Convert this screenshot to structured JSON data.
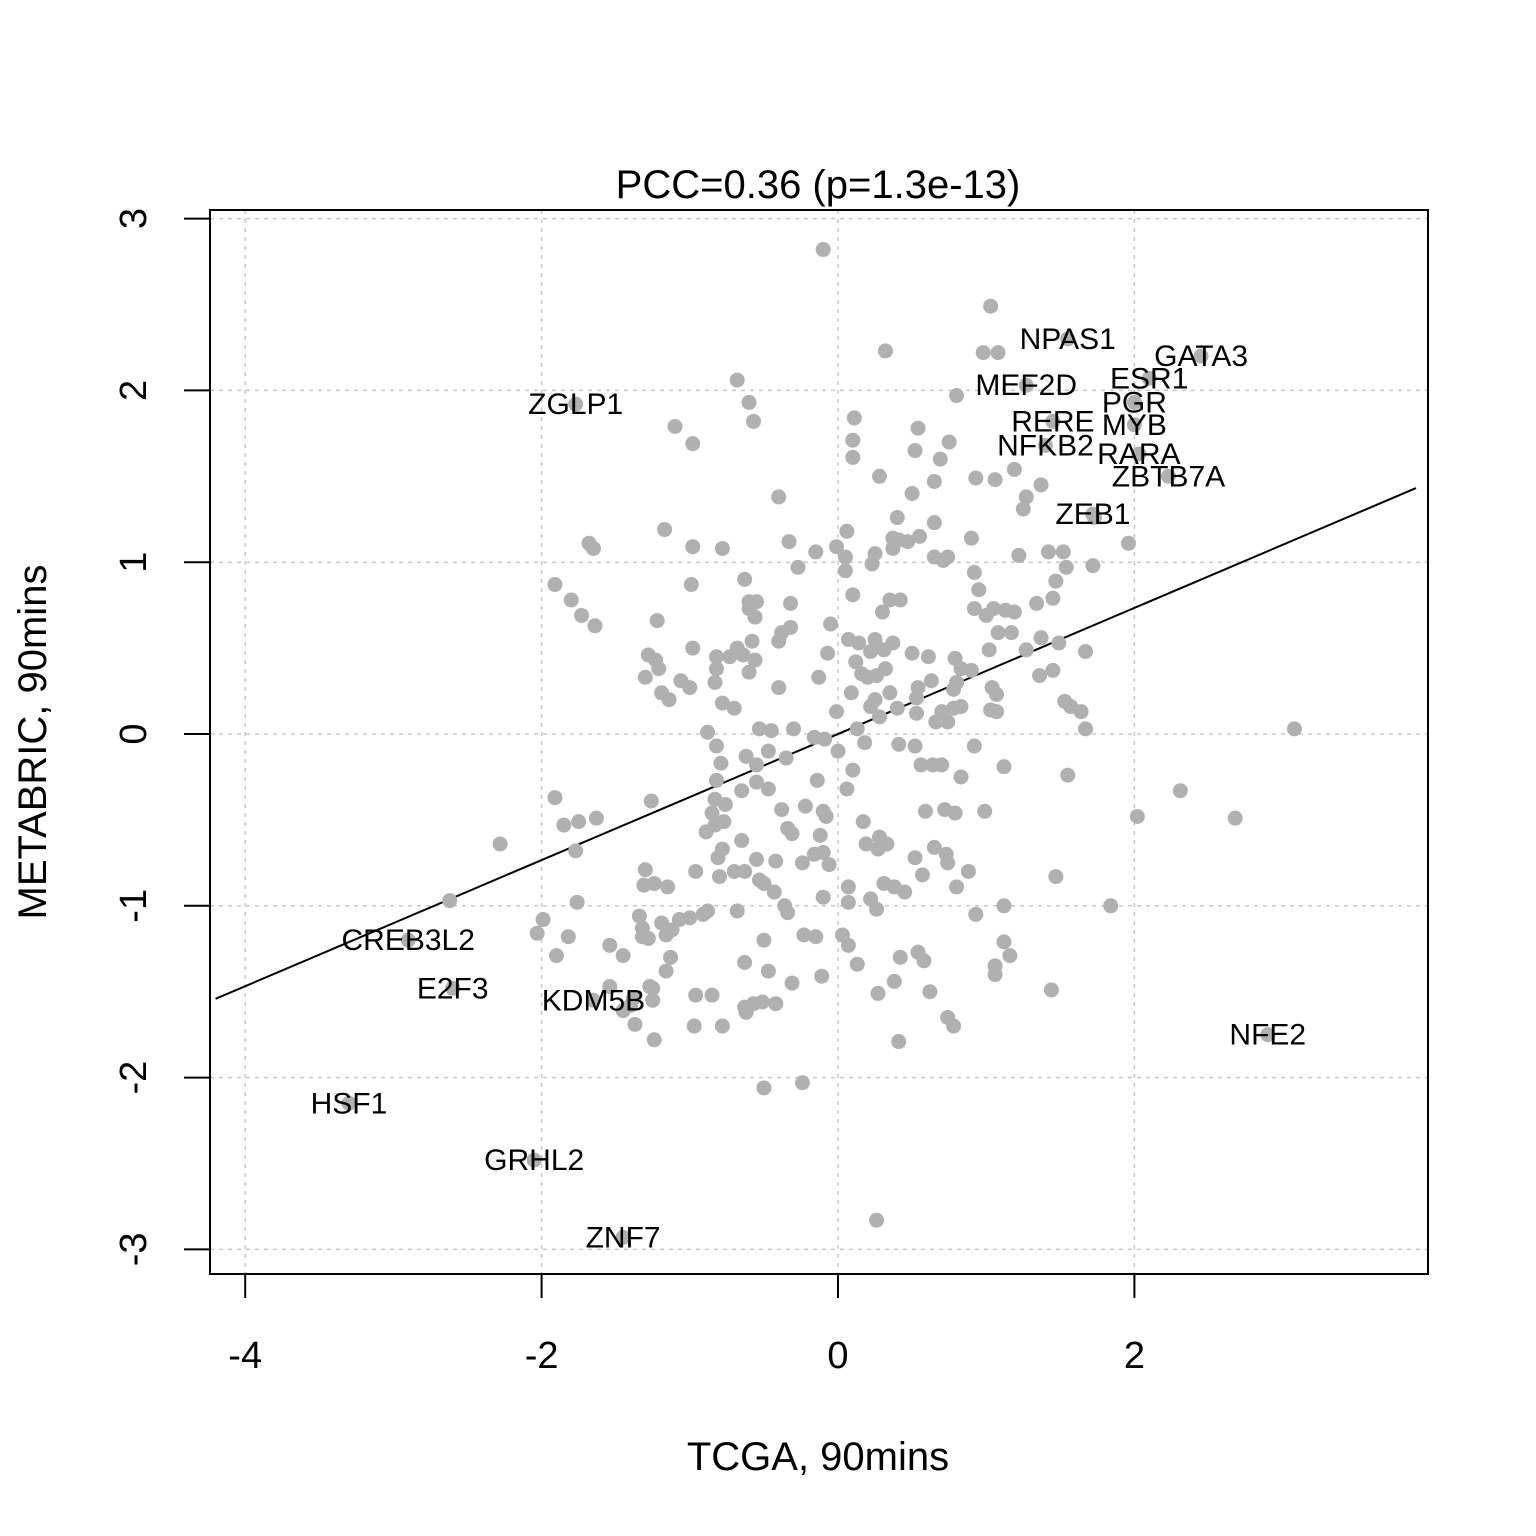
{
  "chart_data": {
    "type": "scatter",
    "title": "PCC=0.36 (p=1.3e-13)",
    "xlabel": "TCGA, 90mins",
    "ylabel": "METABRIC, 90mins",
    "xlim": [
      -4.2,
      3.9
    ],
    "ylim": [
      -3.15,
      3.05
    ],
    "xticks": [
      -4,
      -2,
      0,
      2
    ],
    "yticks": [
      -3,
      -2,
      -1,
      0,
      1,
      2,
      3
    ],
    "grid": true,
    "point_color": "#b0b0b0",
    "fit_line": {
      "slope": 0.367,
      "intercept": -0.0
    },
    "labeled_points": [
      {
        "label": "NPAS1",
        "x": 1.55,
        "y": 2.3
      },
      {
        "label": "GATA3",
        "x": 2.45,
        "y": 2.2
      },
      {
        "label": "ESR1",
        "x": 2.1,
        "y": 2.07
      },
      {
        "label": "MEF2D",
        "x": 1.27,
        "y": 2.03
      },
      {
        "label": "PGR",
        "x": 2.0,
        "y": 1.93
      },
      {
        "label": "ZGLP1",
        "x": -1.77,
        "y": 1.92
      },
      {
        "label": "RERE",
        "x": 1.45,
        "y": 1.82
      },
      {
        "label": "MYB",
        "x": 2.0,
        "y": 1.8
      },
      {
        "label": "NFKB2",
        "x": 1.4,
        "y": 1.68
      },
      {
        "label": "RARA",
        "x": 2.03,
        "y": 1.63
      },
      {
        "label": "ZBTB7A",
        "x": 2.23,
        "y": 1.5
      },
      {
        "label": "ZEB1",
        "x": 1.72,
        "y": 1.28
      },
      {
        "label": "CREB3L2",
        "x": -2.9,
        "y": -1.2
      },
      {
        "label": "E2F3",
        "x": -2.6,
        "y": -1.48
      },
      {
        "label": "KDM5B",
        "x": -1.65,
        "y": -1.55
      },
      {
        "label": "NFE2",
        "x": 2.9,
        "y": -1.75
      },
      {
        "label": "HSF1",
        "x": -3.3,
        "y": -2.15
      },
      {
        "label": "GRHL2",
        "x": -2.05,
        "y": -2.48
      },
      {
        "label": "ZNF7",
        "x": -1.45,
        "y": -2.93
      }
    ],
    "points": [
      [
        -0.1,
        2.82
      ],
      [
        1.03,
        2.49
      ],
      [
        0.32,
        2.23
      ],
      [
        0.98,
        2.22
      ],
      [
        1.08,
        2.22
      ],
      [
        -0.68,
        2.06
      ],
      [
        -0.6,
        1.93
      ],
      [
        0.8,
        1.97
      ],
      [
        -0.57,
        1.82
      ],
      [
        -1.1,
        1.79
      ],
      [
        0.11,
        1.84
      ],
      [
        0.54,
        1.78
      ],
      [
        0.75,
        1.7
      ],
      [
        -0.98,
        1.69
      ],
      [
        0.1,
        1.71
      ],
      [
        0.52,
        1.65
      ],
      [
        0.69,
        1.6
      ],
      [
        0.1,
        1.61
      ],
      [
        1.19,
        1.54
      ],
      [
        0.28,
        1.5
      ],
      [
        0.93,
        1.49
      ],
      [
        1.06,
        1.48
      ],
      [
        0.65,
        1.47
      ],
      [
        1.37,
        1.45
      ],
      [
        0.5,
        1.4
      ],
      [
        -0.4,
        1.38
      ],
      [
        1.27,
        1.38
      ],
      [
        0.4,
        1.26
      ],
      [
        1.25,
        1.31
      ],
      [
        1.73,
        1.26
      ],
      [
        0.65,
        1.23
      ],
      [
        -1.17,
        1.19
      ],
      [
        0.06,
        1.18
      ],
      [
        0.55,
        1.15
      ],
      [
        0.41,
        1.13
      ],
      [
        0.37,
        1.14
      ],
      [
        0.47,
        1.12
      ],
      [
        0.9,
        1.14
      ],
      [
        -0.33,
        1.12
      ],
      [
        1.96,
        1.11
      ],
      [
        -1.68,
        1.11
      ],
      [
        -1.65,
        1.08
      ],
      [
        -0.98,
        1.09
      ],
      [
        -0.78,
        1.08
      ],
      [
        -0.01,
        1.09
      ],
      [
        0.37,
        1.08
      ],
      [
        -0.15,
        1.06
      ],
      [
        1.42,
        1.06
      ],
      [
        1.52,
        1.06
      ],
      [
        0.25,
        1.05
      ],
      [
        1.22,
        1.04
      ],
      [
        0.05,
        1.03
      ],
      [
        0.65,
        1.03
      ],
      [
        0.74,
        1.03
      ],
      [
        0.71,
        1.01
      ],
      [
        0.23,
        0.99
      ],
      [
        1.72,
        0.98
      ],
      [
        -0.27,
        0.97
      ],
      [
        1.54,
        0.97
      ],
      [
        0.05,
        0.95
      ],
      [
        0.92,
        0.94
      ],
      [
        -0.63,
        0.9
      ],
      [
        1.47,
        0.89
      ],
      [
        -1.91,
        0.87
      ],
      [
        -0.99,
        0.87
      ],
      [
        0.95,
        0.84
      ],
      [
        0.1,
        0.81
      ],
      [
        -1.8,
        0.78
      ],
      [
        0.35,
        0.78
      ],
      [
        0.42,
        0.78
      ],
      [
        -0.6,
        0.77
      ],
      [
        -0.55,
        0.77
      ],
      [
        1.45,
        0.79
      ],
      [
        -0.32,
        0.76
      ],
      [
        0.92,
        0.73
      ],
      [
        1.05,
        0.73
      ],
      [
        -0.6,
        0.73
      ],
      [
        1.13,
        0.72
      ],
      [
        1.34,
        0.76
      ],
      [
        0.3,
        0.71
      ],
      [
        1.19,
        0.71
      ],
      [
        1.0,
        0.69
      ],
      [
        -1.73,
        0.69
      ],
      [
        -0.56,
        0.68
      ],
      [
        -1.22,
        0.66
      ],
      [
        -1.64,
        0.63
      ],
      [
        -0.05,
        0.64
      ],
      [
        -0.32,
        0.62
      ],
      [
        -0.38,
        0.59
      ],
      [
        1.08,
        0.59
      ],
      [
        1.17,
        0.59
      ],
      [
        1.37,
        0.56
      ],
      [
        0.07,
        0.55
      ],
      [
        -0.4,
        0.54
      ],
      [
        -0.58,
        0.54
      ],
      [
        0.25,
        0.55
      ],
      [
        0.14,
        0.53
      ],
      [
        1.49,
        0.53
      ],
      [
        -0.98,
        0.5
      ],
      [
        0.31,
        0.49
      ],
      [
        0.37,
        0.53
      ],
      [
        1.02,
        0.49
      ],
      [
        1.27,
        0.49
      ],
      [
        0.22,
        0.48
      ],
      [
        0.5,
        0.47
      ],
      [
        -0.82,
        0.45
      ],
      [
        -0.73,
        0.45
      ],
      [
        -1.28,
        0.46
      ],
      [
        -0.64,
        0.46
      ],
      [
        -0.68,
        0.5
      ],
      [
        0.79,
        0.44
      ],
      [
        0.61,
        0.45
      ],
      [
        -0.07,
        0.47
      ],
      [
        1.67,
        0.48
      ],
      [
        -1.23,
        0.43
      ],
      [
        -0.56,
        0.43
      ],
      [
        0.12,
        0.42
      ],
      [
        1.45,
        0.37
      ],
      [
        -1.21,
        0.38
      ],
      [
        -0.82,
        0.38
      ],
      [
        0.32,
        0.38
      ],
      [
        0.83,
        0.38
      ],
      [
        0.9,
        0.37
      ],
      [
        -1.3,
        0.33
      ],
      [
        -0.13,
        0.33
      ],
      [
        0.16,
        0.35
      ],
      [
        0.2,
        0.33
      ],
      [
        0.26,
        0.34
      ],
      [
        -0.6,
        0.36
      ],
      [
        -1.06,
        0.31
      ],
      [
        1.36,
        0.34
      ],
      [
        -0.83,
        0.3
      ],
      [
        0.63,
        0.31
      ],
      [
        0.8,
        0.3
      ],
      [
        1.04,
        0.27
      ],
      [
        -1.0,
        0.27
      ],
      [
        -0.4,
        0.27
      ],
      [
        0.54,
        0.27
      ],
      [
        0.78,
        0.26
      ],
      [
        1.07,
        0.23
      ],
      [
        -1.19,
        0.24
      ],
      [
        0.09,
        0.24
      ],
      [
        0.35,
        0.24
      ],
      [
        0.53,
        0.21
      ],
      [
        -1.14,
        0.2
      ],
      [
        1.53,
        0.19
      ],
      [
        0.25,
        0.2
      ],
      [
        -0.78,
        0.18
      ],
      [
        0.83,
        0.16
      ],
      [
        1.57,
        0.16
      ],
      [
        0.22,
        0.16
      ],
      [
        0.4,
        0.15
      ],
      [
        -0.7,
        0.15
      ],
      [
        0.78,
        0.15
      ],
      [
        1.03,
        0.14
      ],
      [
        1.64,
        0.13
      ],
      [
        0.53,
        0.12
      ],
      [
        0.7,
        0.13
      ],
      [
        -0.01,
        0.13
      ],
      [
        0.28,
        0.1
      ],
      [
        1.07,
        0.13
      ],
      [
        0.66,
        0.07
      ],
      [
        -0.53,
        0.03
      ],
      [
        0.74,
        0.07
      ],
      [
        -0.45,
        0.02
      ],
      [
        -0.88,
        0.01
      ],
      [
        -0.3,
        0.03
      ],
      [
        0.13,
        0.03
      ],
      [
        1.67,
        0.03
      ],
      [
        3.08,
        0.03
      ],
      [
        -0.16,
        -0.02
      ],
      [
        -0.09,
        -0.03
      ],
      [
        0.18,
        -0.05
      ],
      [
        0.41,
        -0.06
      ],
      [
        -0.82,
        -0.07
      ],
      [
        -0.47,
        -0.1
      ],
      [
        0.0,
        -0.1
      ],
      [
        0.52,
        -0.07
      ],
      [
        0.92,
        -0.07
      ],
      [
        -0.62,
        -0.13
      ],
      [
        -0.35,
        -0.14
      ],
      [
        0.56,
        -0.18
      ],
      [
        0.64,
        -0.18
      ],
      [
        -0.79,
        -0.17
      ],
      [
        -0.55,
        -0.18
      ],
      [
        0.7,
        -0.18
      ],
      [
        0.1,
        -0.21
      ],
      [
        1.12,
        -0.19
      ],
      [
        -0.82,
        -0.27
      ],
      [
        0.83,
        -0.25
      ],
      [
        1.55,
        -0.24
      ],
      [
        -0.55,
        -0.28
      ],
      [
        -0.14,
        -0.27
      ],
      [
        -0.47,
        -0.32
      ],
      [
        -0.65,
        -0.33
      ],
      [
        0.06,
        -0.32
      ],
      [
        2.31,
        -0.33
      ],
      [
        -1.91,
        -0.37
      ],
      [
        -0.83,
        -0.38
      ],
      [
        -1.26,
        -0.39
      ],
      [
        -0.76,
        -0.41
      ],
      [
        -0.22,
        -0.42
      ],
      [
        -0.38,
        -0.44
      ],
      [
        0.59,
        -0.45
      ],
      [
        0.72,
        -0.44
      ],
      [
        0.79,
        -0.46
      ],
      [
        0.99,
        -0.45
      ],
      [
        -0.85,
        -0.46
      ],
      [
        -0.1,
        -0.45
      ],
      [
        -0.08,
        -0.48
      ],
      [
        2.02,
        -0.48
      ],
      [
        2.68,
        -0.49
      ],
      [
        -1.63,
        -0.49
      ],
      [
        -1.75,
        -0.51
      ],
      [
        -0.77,
        -0.51
      ],
      [
        0.17,
        -0.51
      ],
      [
        -0.83,
        -0.53
      ],
      [
        -1.85,
        -0.53
      ],
      [
        -0.34,
        -0.55
      ],
      [
        -0.89,
        -0.57
      ],
      [
        -0.31,
        -0.58
      ],
      [
        -0.12,
        -0.59
      ],
      [
        0.28,
        -0.6
      ],
      [
        -0.65,
        -0.62
      ],
      [
        0.33,
        -0.64
      ],
      [
        0.19,
        -0.64
      ],
      [
        -2.28,
        -0.64
      ],
      [
        0.27,
        -0.67
      ],
      [
        0.65,
        -0.66
      ],
      [
        -0.78,
        -0.67
      ],
      [
        -1.77,
        -0.68
      ],
      [
        -0.1,
        -0.69
      ],
      [
        0.73,
        -0.7
      ],
      [
        -0.16,
        -0.7
      ],
      [
        0.52,
        -0.72
      ],
      [
        -0.81,
        -0.72
      ],
      [
        -0.55,
        -0.73
      ],
      [
        -0.42,
        -0.74
      ],
      [
        -0.24,
        -0.75
      ],
      [
        0.74,
        -0.75
      ],
      [
        -0.06,
        -0.76
      ],
      [
        0.88,
        -0.8
      ],
      [
        -0.7,
        -0.8
      ],
      [
        -0.63,
        -0.8
      ],
      [
        -1.3,
        -0.79
      ],
      [
        -0.96,
        -0.8
      ],
      [
        0.57,
        -0.82
      ],
      [
        -0.8,
        -0.83
      ],
      [
        -0.53,
        -0.85
      ],
      [
        1.47,
        -0.83
      ],
      [
        -1.24,
        -0.87
      ],
      [
        -0.5,
        -0.87
      ],
      [
        0.31,
        -0.87
      ],
      [
        -1.31,
        -0.88
      ],
      [
        0.07,
        -0.89
      ],
      [
        0.38,
        -0.89
      ],
      [
        0.8,
        -0.89
      ],
      [
        -1.15,
        -0.89
      ],
      [
        -0.43,
        -0.92
      ],
      [
        0.45,
        -0.92
      ],
      [
        -0.1,
        -0.95
      ],
      [
        0.22,
        -0.96
      ],
      [
        0.07,
        -0.98
      ],
      [
        1.12,
        -1.0
      ],
      [
        1.84,
        -1.0
      ],
      [
        -2.62,
        -0.97
      ],
      [
        -1.76,
        -0.98
      ],
      [
        -0.36,
        -1.0
      ],
      [
        -0.68,
        -1.03
      ],
      [
        0.93,
        -1.05
      ],
      [
        -0.34,
        -1.04
      ],
      [
        0.26,
        -1.02
      ],
      [
        -0.88,
        -1.03
      ],
      [
        -0.91,
        -1.05
      ],
      [
        -1.0,
        -1.07
      ],
      [
        -1.07,
        -1.08
      ],
      [
        -1.99,
        -1.08
      ],
      [
        -1.34,
        -1.06
      ],
      [
        -1.19,
        -1.1
      ],
      [
        -1.12,
        -1.14
      ],
      [
        -1.32,
        -1.13
      ],
      [
        -1.16,
        -1.17
      ],
      [
        -2.03,
        -1.16
      ],
      [
        -1.82,
        -1.18
      ],
      [
        -1.32,
        -1.18
      ],
      [
        -1.28,
        -1.19
      ],
      [
        0.03,
        -1.17
      ],
      [
        -0.23,
        -1.17
      ],
      [
        -0.15,
        -1.18
      ],
      [
        -0.5,
        -1.2
      ],
      [
        1.12,
        -1.21
      ],
      [
        0.07,
        -1.23
      ],
      [
        -1.54,
        -1.23
      ],
      [
        0.54,
        -1.27
      ],
      [
        1.16,
        -1.29
      ],
      [
        -1.45,
        -1.29
      ],
      [
        0.42,
        -1.3
      ],
      [
        1.06,
        -1.35
      ],
      [
        -1.9,
        -1.29
      ],
      [
        -1.13,
        -1.3
      ],
      [
        -0.63,
        -1.33
      ],
      [
        0.13,
        -1.34
      ],
      [
        0.58,
        -1.32
      ],
      [
        -0.47,
        -1.38
      ],
      [
        -1.16,
        -1.38
      ],
      [
        1.06,
        -1.4
      ],
      [
        -0.11,
        -1.41
      ],
      [
        -0.31,
        -1.45
      ],
      [
        0.38,
        -1.44
      ],
      [
        -1.54,
        -1.47
      ],
      [
        -1.27,
        -1.47
      ],
      [
        1.44,
        -1.49
      ],
      [
        -1.25,
        -1.48
      ],
      [
        0.62,
        -1.5
      ],
      [
        0.27,
        -1.51
      ],
      [
        -0.96,
        -1.52
      ],
      [
        -0.85,
        -1.52
      ],
      [
        -1.38,
        -1.54
      ],
      [
        -1.25,
        -1.55
      ],
      [
        -0.51,
        -1.56
      ],
      [
        -0.57,
        -1.57
      ],
      [
        -0.42,
        -1.57
      ],
      [
        -1.4,
        -1.58
      ],
      [
        -0.63,
        -1.59
      ],
      [
        -1.45,
        -1.61
      ],
      [
        -0.62,
        -1.62
      ],
      [
        0.74,
        -1.65
      ],
      [
        -1.37,
        -1.69
      ],
      [
        -0.97,
        -1.7
      ],
      [
        0.78,
        -1.7
      ],
      [
        -0.78,
        -1.7
      ],
      [
        -1.24,
        -1.78
      ],
      [
        0.41,
        -1.79
      ],
      [
        -0.24,
        -2.03
      ],
      [
        -0.5,
        -2.06
      ],
      [
        0.26,
        -2.83
      ]
    ]
  }
}
